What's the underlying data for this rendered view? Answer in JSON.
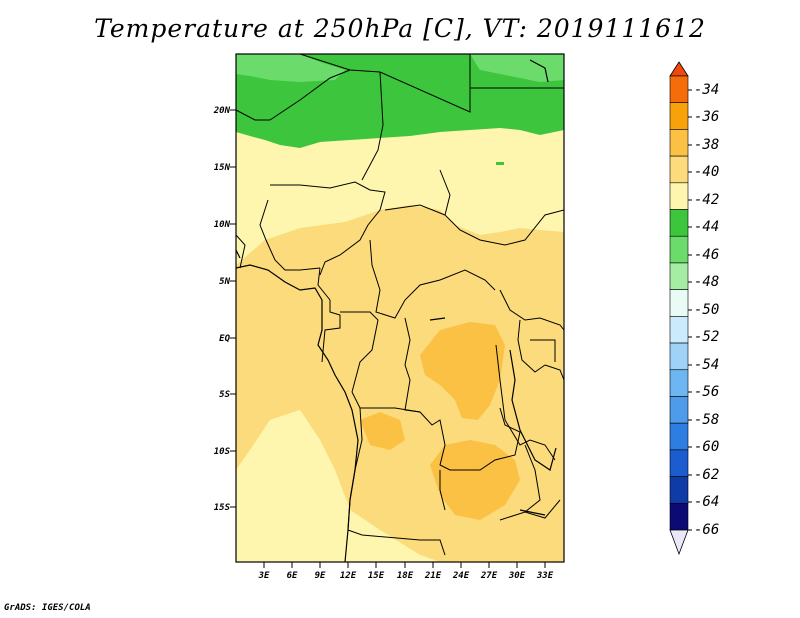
{
  "title": "Temperature at 250hPa [C], VT: 2019111612",
  "credit": "GrADS: IGES/COLA",
  "map": {
    "lat_labels": [
      "20N",
      "15N",
      "10N",
      "5N",
      "EQ",
      "5S",
      "10S",
      "15S"
    ],
    "lon_labels": [
      "3E",
      "6E",
      "9E",
      "12E",
      "15E",
      "18E",
      "21E",
      "24E",
      "27E",
      "30E",
      "33E"
    ],
    "lat_range": [
      -19,
      25
    ],
    "lon_range": [
      0,
      35
    ]
  },
  "colorbar": {
    "labels": [
      "-34",
      "-36",
      "-38",
      "-40",
      "-42",
      "-44",
      "-46",
      "-48",
      "-50",
      "-52",
      "-54",
      "-56",
      "-58",
      "-60",
      "-62",
      "-64",
      "-66"
    ],
    "colors": [
      "#ef4a0a",
      "#f46d0a",
      "#f7a10b",
      "#fac145",
      "#fbdb7c",
      "#fef6ae",
      "#3dc63d",
      "#6bdc6b",
      "#a5eda5",
      "#e8fbf5",
      "#cbeafb",
      "#9fd2f6",
      "#6db6f2",
      "#4d9be9",
      "#2e7ee1",
      "#1b5ccf",
      "#0f3ba7",
      "#0b0b73",
      "#e8e8f8"
    ]
  }
}
